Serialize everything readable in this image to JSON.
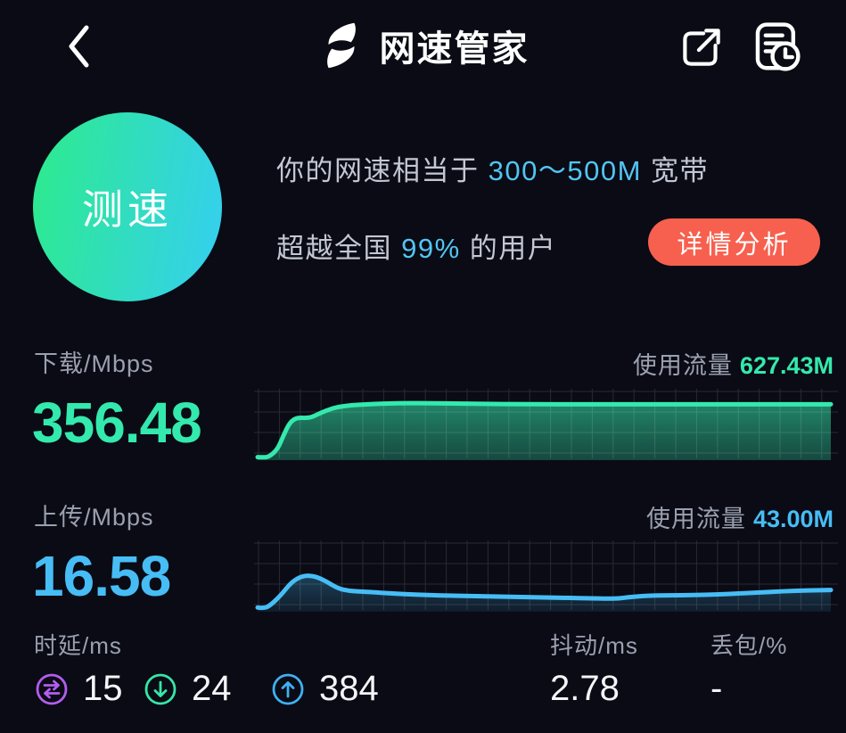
{
  "header": {
    "title": "网速管家",
    "icons": {
      "back": "chevron-left",
      "logo": "s-lightning-logo",
      "share": "share-external",
      "history": "report-history"
    }
  },
  "hero": {
    "test_button_label": "测速",
    "line1_prefix": "你的网速相当于 ",
    "line1_highlight": "300～500M",
    "line1_suffix": " 宽带",
    "line2_prefix": "超越全国 ",
    "line2_highlight": "99%",
    "line2_suffix": " 的用户",
    "detail_button_label": "详情分析"
  },
  "download": {
    "label": "下载",
    "unit": "/Mbps",
    "value": "356.48",
    "usage_label": "使用流量",
    "usage_value": "627.43M"
  },
  "upload": {
    "label": "上传",
    "unit": "/Mbps",
    "value": "16.58",
    "usage_label": "使用流量",
    "usage_value": "43.00M"
  },
  "stats": {
    "latency": {
      "label": "时延",
      "unit": "/ms",
      "ping": "15",
      "download": "24",
      "upload": "384",
      "icons": {
        "ping": "swap-arrows",
        "download": "arrow-down-circle",
        "upload": "arrow-up-circle"
      }
    },
    "jitter": {
      "label": "抖动",
      "unit": "/ms",
      "value": "2.78"
    },
    "loss": {
      "label": "丢包",
      "unit": "/%",
      "value": "-"
    }
  },
  "colors": {
    "background": "#0a0b15",
    "teal": "#34e9ad",
    "blue": "#47bdf5",
    "highlight_blue": "#52c5f2",
    "red": "#f7604e",
    "purple_icon": "#b45df0",
    "green_icon": "#38e6a6",
    "blue_icon": "#3fb0f2",
    "circle_green": "#2dea90",
    "circle_cyan": "#35d0ed",
    "text_primary": "#f4f5f9",
    "text_secondary": "#9ba0b0",
    "text_sentence": "#c3c7d3",
    "grid": "rgba(255,255,255,0.13)"
  },
  "chart_data": [
    {
      "type": "area",
      "name": "download-speed-history",
      "unit": "Mbps",
      "final_value": 356.48,
      "ylim": [
        0,
        470
      ],
      "grid": true,
      "legend": false,
      "x_percent": [
        0,
        1,
        2,
        3.5,
        4.5,
        5.5,
        6.5,
        7.5,
        8.5,
        9.5,
        11,
        13,
        15,
        17,
        20,
        23,
        26,
        30,
        35,
        40,
        45,
        50,
        55,
        60,
        65,
        70,
        75,
        80,
        85,
        90,
        95,
        100
      ],
      "values": [
        8,
        6,
        10,
        60,
        150,
        230,
        262,
        268,
        266,
        272,
        300,
        330,
        345,
        352,
        358,
        362,
        364,
        363,
        361,
        359,
        357,
        356,
        356,
        356,
        356,
        356,
        356,
        356,
        356,
        356,
        356,
        356
      ],
      "line_color": "#34e9ad",
      "fill_opacity": [
        0.55,
        0.28
      ]
    },
    {
      "type": "area",
      "name": "upload-speed-history",
      "unit": "Mbps",
      "final_value": 16.58,
      "ylim": [
        0,
        60
      ],
      "grid": true,
      "legend": false,
      "x_percent": [
        0,
        1,
        2,
        4,
        6,
        8,
        10,
        12,
        14,
        16,
        18,
        20,
        23,
        26,
        30,
        34,
        38,
        42,
        46,
        50,
        54,
        58,
        61,
        63,
        65,
        68,
        72,
        76,
        80,
        84,
        88,
        92,
        96,
        100
      ],
      "values": [
        2,
        1.5,
        3,
        12,
        24,
        29,
        28.5,
        24,
        18,
        16,
        15.5,
        15,
        14,
        13.2,
        12.5,
        12,
        11.6,
        11.2,
        10.8,
        10.5,
        10.2,
        9.8,
        9.5,
        9.6,
        11,
        12,
        12.3,
        12.5,
        13,
        13.8,
        14.8,
        15.8,
        16.4,
        16.8
      ],
      "line_color": "#47bdf5",
      "fill_opacity": [
        0.3,
        0.1
      ]
    }
  ]
}
